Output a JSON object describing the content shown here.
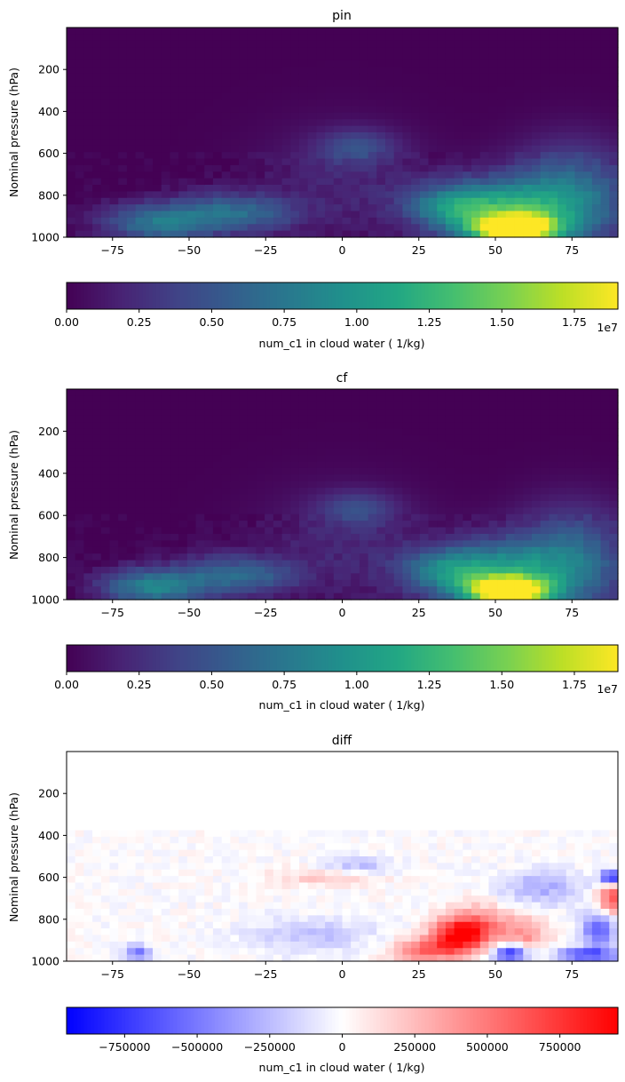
{
  "chart_data": [
    {
      "type": "heatmap",
      "title": "pin",
      "ylabel": "Nominal pressure (hPa)",
      "xlim": [
        -90,
        90
      ],
      "ylim": [
        1000,
        0
      ],
      "xticks": [
        -75,
        -50,
        -25,
        0,
        25,
        50,
        75
      ],
      "xtick_labels": [
        "−75",
        "−50",
        "−25",
        "0",
        "25",
        "50",
        "75"
      ],
      "yticks": [
        200,
        400,
        600,
        800,
        1000
      ],
      "ytick_labels": [
        "200",
        "400",
        "600",
        "800",
        "1000"
      ],
      "colormap": "viridis",
      "features": [
        {
          "lat": 56,
          "p": 960,
          "value": 19000000.0,
          "lat_spread": 9,
          "p_spread": 45
        },
        {
          "lat": 52,
          "p": 880,
          "value": 10000000.0,
          "lat_spread": 16,
          "p_spread": 110
        },
        {
          "lat": 75,
          "p": 820,
          "value": 7000000.0,
          "lat_spread": 14,
          "p_spread": 180
        },
        {
          "lat": 35,
          "p": 850,
          "value": 5500000.0,
          "lat_spread": 10,
          "p_spread": 70
        },
        {
          "lat": -60,
          "p": 930,
          "value": 7500000.0,
          "lat_spread": 13,
          "p_spread": 70
        },
        {
          "lat": -40,
          "p": 880,
          "value": 4500000.0,
          "lat_spread": 10,
          "p_spread": 70
        },
        {
          "lat": -25,
          "p": 890,
          "value": 3500000.0,
          "lat_spread": 9,
          "p_spread": 60
        },
        {
          "lat": 5,
          "p": 570,
          "value": 3800000.0,
          "lat_spread": 9,
          "p_spread": 60
        },
        {
          "lat": 0,
          "p": 750,
          "value": 2000000.0,
          "lat_spread": 20,
          "p_spread": 200
        }
      ],
      "colorbar": {
        "label": "num_c1 in cloud water ( 1/kg)",
        "min": 0,
        "max": 19000000.0,
        "ticks": [
          0,
          2500000.0,
          5000000.0,
          7500000.0,
          10000000.0,
          12500000.0,
          15000000.0,
          17500000.0
        ],
        "tick_labels": [
          "0.00",
          "0.25",
          "0.50",
          "0.75",
          "1.00",
          "1.25",
          "1.50",
          "1.75"
        ],
        "offset_text": "1e7"
      }
    },
    {
      "type": "heatmap",
      "title": "cf",
      "ylabel": "Nominal pressure (hPa)",
      "xlim": [
        -90,
        90
      ],
      "ylim": [
        1000,
        0
      ],
      "xticks": [
        -75,
        -50,
        -25,
        0,
        25,
        50,
        75
      ],
      "xtick_labels": [
        "−75",
        "−50",
        "−25",
        "0",
        "25",
        "50",
        "75"
      ],
      "yticks": [
        200,
        400,
        600,
        800,
        1000
      ],
      "ytick_labels": [
        "200",
        "400",
        "600",
        "800",
        "1000"
      ],
      "colormap": "viridis",
      "features": [
        {
          "lat": 54,
          "p": 960,
          "value": 18500000.0,
          "lat_spread": 9,
          "p_spread": 45
        },
        {
          "lat": 50,
          "p": 880,
          "value": 9000000.0,
          "lat_spread": 16,
          "p_spread": 110
        },
        {
          "lat": 75,
          "p": 820,
          "value": 6500000.0,
          "lat_spread": 14,
          "p_spread": 180
        },
        {
          "lat": 33,
          "p": 860,
          "value": 5000000.0,
          "lat_spread": 10,
          "p_spread": 70
        },
        {
          "lat": -62,
          "p": 940,
          "value": 8500000.0,
          "lat_spread": 12,
          "p_spread": 65
        },
        {
          "lat": -40,
          "p": 880,
          "value": 4500000.0,
          "lat_spread": 10,
          "p_spread": 70
        },
        {
          "lat": -25,
          "p": 890,
          "value": 3500000.0,
          "lat_spread": 9,
          "p_spread": 60
        },
        {
          "lat": 5,
          "p": 570,
          "value": 3600000.0,
          "lat_spread": 9,
          "p_spread": 60
        },
        {
          "lat": 0,
          "p": 750,
          "value": 2000000.0,
          "lat_spread": 20,
          "p_spread": 200
        }
      ],
      "colorbar": {
        "label": "num_c1 in cloud water ( 1/kg)",
        "min": 0,
        "max": 19000000.0,
        "ticks": [
          0,
          2500000.0,
          5000000.0,
          7500000.0,
          10000000.0,
          12500000.0,
          15000000.0,
          17500000.0
        ],
        "tick_labels": [
          "0.00",
          "0.25",
          "0.50",
          "0.75",
          "1.00",
          "1.25",
          "1.50",
          "1.75"
        ],
        "offset_text": "1e7"
      }
    },
    {
      "type": "heatmap",
      "title": "diff",
      "ylabel": "Nominal pressure (hPa)",
      "xlim": [
        -90,
        90
      ],
      "ylim": [
        1000,
        0
      ],
      "xticks": [
        -75,
        -50,
        -25,
        0,
        25,
        50,
        75
      ],
      "xtick_labels": [
        "−75",
        "−50",
        "−25",
        "0",
        "25",
        "50",
        "75"
      ],
      "yticks": [
        200,
        400,
        600,
        800,
        1000
      ],
      "ytick_labels": [
        "200",
        "400",
        "600",
        "800",
        "1000"
      ],
      "colormap": "bwr",
      "features": [
        {
          "lat": 38,
          "p": 880,
          "value": 800000,
          "lat_spread": 6,
          "p_spread": 55
        },
        {
          "lat": 27,
          "p": 950,
          "value": 550000,
          "lat_spread": 8,
          "p_spread": 40
        },
        {
          "lat": 45,
          "p": 830,
          "value": 450000,
          "lat_spread": 8,
          "p_spread": 70
        },
        {
          "lat": 60,
          "p": 880,
          "value": 350000,
          "lat_spread": 5,
          "p_spread": 60
        },
        {
          "lat": 88,
          "p": 700,
          "value": 650000,
          "lat_spread": 3,
          "p_spread": 60
        },
        {
          "lat": -5,
          "p": 600,
          "value": 220000,
          "lat_spread": 12,
          "p_spread": 30
        },
        {
          "lat": 55,
          "p": 960,
          "value": -800000,
          "lat_spread": 4,
          "p_spread": 30
        },
        {
          "lat": 80,
          "p": 970,
          "value": -650000,
          "lat_spread": 8,
          "p_spread": 25
        },
        {
          "lat": 88,
          "p": 600,
          "value": -950000,
          "lat_spread": 2.5,
          "p_spread": 25
        },
        {
          "lat": 84,
          "p": 850,
          "value": -600000,
          "lat_spread": 4,
          "p_spread": 60
        },
        {
          "lat": 65,
          "p": 650,
          "value": -300000,
          "lat_spread": 10,
          "p_spread": 60
        },
        {
          "lat": -67,
          "p": 960,
          "value": -550000,
          "lat_spread": 3,
          "p_spread": 25
        },
        {
          "lat": 5,
          "p": 550,
          "value": -250000,
          "lat_spread": 8,
          "p_spread": 30
        },
        {
          "lat": -10,
          "p": 880,
          "value": -220000,
          "lat_spread": 15,
          "p_spread": 60
        }
      ],
      "colorbar": {
        "label": "num_c1 in cloud water ( 1/kg)",
        "min": -950000,
        "max": 950000,
        "ticks": [
          -750000,
          -500000,
          -250000,
          0,
          250000,
          500000,
          750000
        ],
        "tick_labels": [
          "−750000",
          "−500000",
          "−250000",
          "0",
          "250000",
          "500000",
          "750000"
        ],
        "offset_text": ""
      }
    }
  ]
}
